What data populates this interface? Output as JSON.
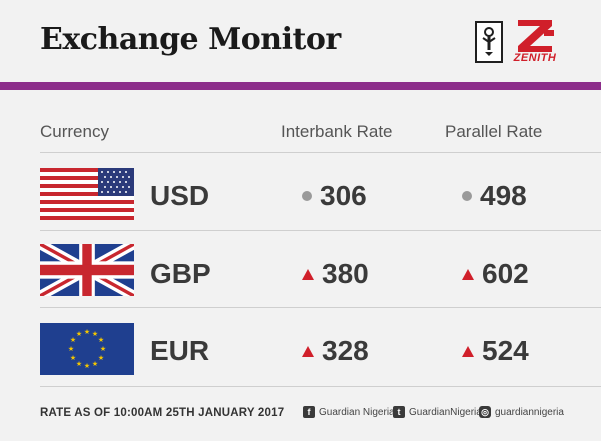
{
  "header": {
    "title": "Exchange Monitor",
    "zenith_word": "ZENITH"
  },
  "columns": {
    "currency": "Currency",
    "interbank": "Interbank Rate",
    "parallel": "Parallel Rate"
  },
  "rows": [
    {
      "code": "USD",
      "flag": "us-flag",
      "interbank": "306",
      "interbank_trend": "unchanged",
      "parallel": "498",
      "parallel_trend": "unchanged"
    },
    {
      "code": "GBP",
      "flag": "uk-flag",
      "interbank": "380",
      "interbank_trend": "up",
      "parallel": "602",
      "parallel_trend": "up"
    },
    {
      "code": "EUR",
      "flag": "eu-flag",
      "interbank": "328",
      "interbank_trend": "up",
      "parallel": "524",
      "parallel_trend": "up"
    }
  ],
  "footer": {
    "date": "RATE AS OF 10:00AM 25TH JANUARY 2017",
    "facebook": "Guardian Nigeria",
    "twitter": "GuardianNigeria",
    "instagram": "guardiannigeria"
  },
  "colors": {
    "accent_bar": "#8c2d8a",
    "up_arrow": "#d01f2a",
    "unchanged_dot": "#9a9a9a"
  }
}
